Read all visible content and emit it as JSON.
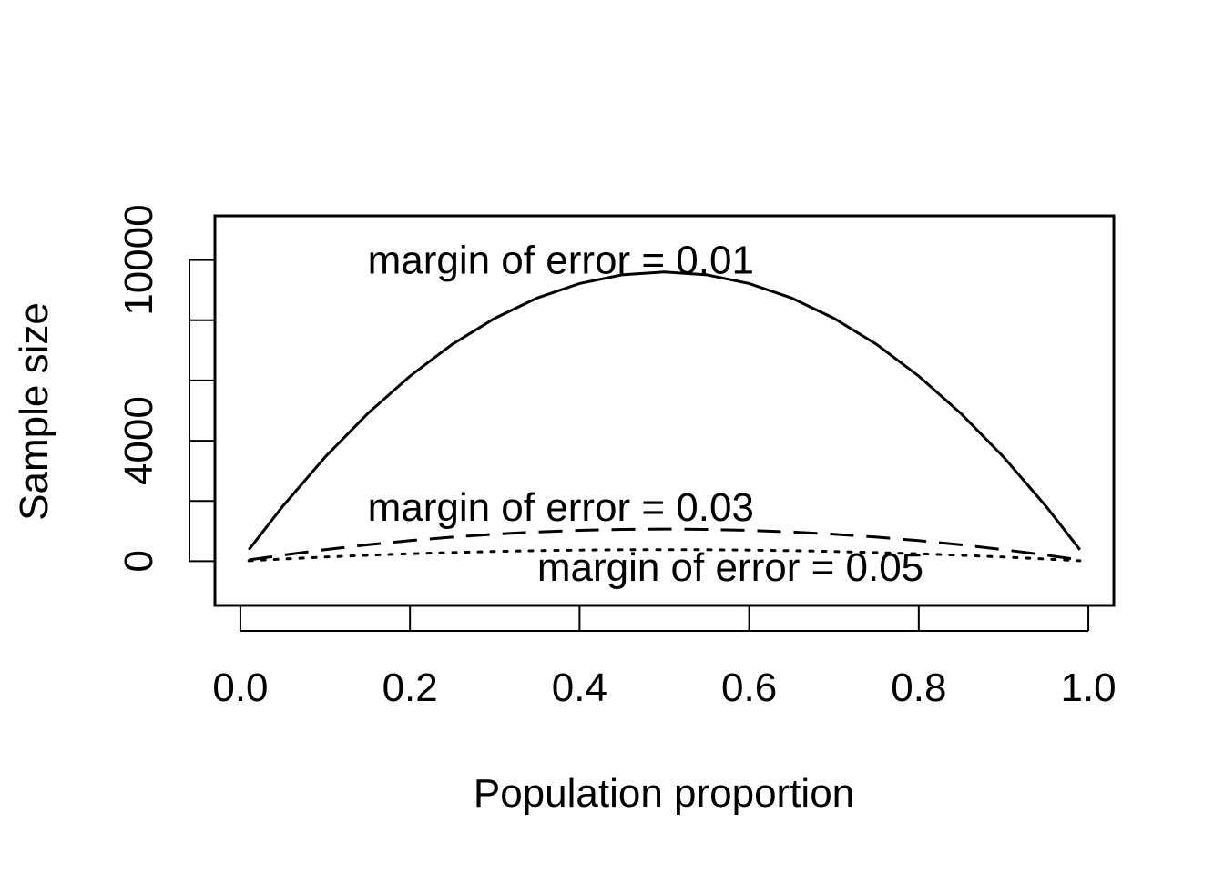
{
  "chart_data": {
    "type": "line",
    "title": "",
    "xlabel": "Population proportion",
    "ylabel": "Sample size",
    "xlim": [
      -0.03,
      1.03
    ],
    "ylim": [
      -1470,
      11470
    ],
    "xticks": [
      0.0,
      0.2,
      0.4,
      0.6,
      0.8,
      1.0
    ],
    "xtick_labels": [
      "0.0",
      "0.2",
      "0.4",
      "0.6",
      "0.8",
      "1.0"
    ],
    "yticks": [
      0,
      2000,
      4000,
      6000,
      8000,
      10000
    ],
    "ytick_labels": [
      "0",
      "",
      "4000",
      "",
      "",
      "10000"
    ],
    "grid": false,
    "legend": "none",
    "x": [
      0.01,
      0.05,
      0.1,
      0.15,
      0.2,
      0.25,
      0.3,
      0.35,
      0.4,
      0.45,
      0.5,
      0.55,
      0.6,
      0.65,
      0.7,
      0.75,
      0.8,
      0.85,
      0.9,
      0.95,
      0.99
    ],
    "series": [
      {
        "style": "solid",
        "values": [
          380,
          1825,
          3457,
          4898,
          6147,
          7203,
          8067,
          8740,
          9220,
          9508,
          9604,
          9508,
          9220,
          8740,
          8067,
          7203,
          6147,
          4898,
          3457,
          1825,
          380
        ]
      },
      {
        "style": "dashed",
        "values": [
          42,
          203,
          384,
          544,
          683,
          800,
          896,
          971,
          1024,
          1056,
          1067,
          1056,
          1024,
          971,
          896,
          800,
          683,
          544,
          384,
          203,
          42
        ]
      },
      {
        "style": "dotted",
        "values": [
          15,
          73,
          138,
          196,
          246,
          288,
          323,
          350,
          369,
          380,
          384,
          380,
          369,
          350,
          323,
          288,
          246,
          196,
          138,
          73,
          15
        ]
      }
    ],
    "annotations": [
      {
        "text": "margin of error = 0.01",
        "x": 0.15,
        "y": 10000
      },
      {
        "text": "margin of error = 0.03",
        "x": 0.15,
        "y": 1800
      },
      {
        "text": "margin of error = 0.05",
        "x": 0.35,
        "y": -200
      }
    ]
  }
}
